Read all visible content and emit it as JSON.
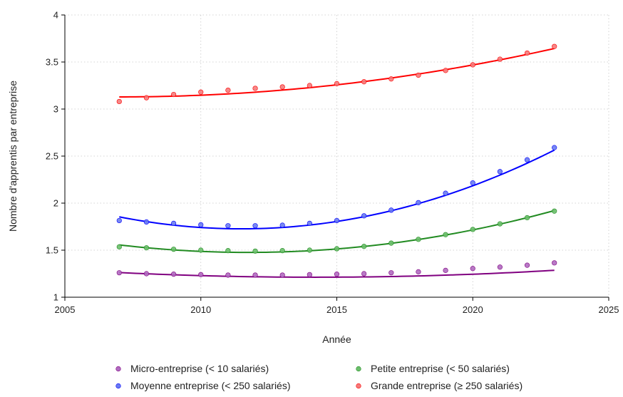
{
  "chart_data": {
    "type": "scatter",
    "xlabel": "Année",
    "ylabel": "Nombre d'apprentis par entreprise",
    "xlim": [
      2005,
      2025
    ],
    "ylim": [
      1,
      4
    ],
    "xticks": [
      2005,
      2010,
      2015,
      2020,
      2025
    ],
    "yticks": [
      1,
      1.5,
      2,
      2.5,
      3,
      3.5,
      4
    ],
    "ytick_labels": [
      "1",
      "1.5",
      "2",
      "2.5",
      "3",
      "3.5",
      "4"
    ],
    "grid": true,
    "legend_position": "bottom",
    "x": [
      2007,
      2008,
      2009,
      2010,
      2011,
      2012,
      2013,
      2014,
      2015,
      2016,
      2017,
      2018,
      2019,
      2020,
      2021,
      2022,
      2023
    ],
    "series": [
      {
        "name": "Micro-entreprise (< 10 salariés)",
        "color": "#800080",
        "marker_color": "#b06cc0",
        "values": [
          1.26,
          1.25,
          1.245,
          1.24,
          1.235,
          1.235,
          1.235,
          1.24,
          1.245,
          1.25,
          1.26,
          1.27,
          1.285,
          1.305,
          1.32,
          1.34,
          1.365
        ],
        "fit": [
          1.262,
          -0.0137,
          0.00095
        ]
      },
      {
        "name": "Petite entreprise (< 50 salariés)",
        "color": "#228b22",
        "marker_color": "#6cbf6c",
        "values": [
          1.535,
          1.525,
          1.51,
          1.5,
          1.495,
          1.49,
          1.495,
          1.5,
          1.515,
          1.54,
          1.575,
          1.615,
          1.665,
          1.72,
          1.78,
          1.845,
          1.915
        ],
        "fit": [
          1.556,
          -0.0335,
          0.00352
        ]
      },
      {
        "name": "Moyenne entreprise (< 250 salariés)",
        "color": "#0000ff",
        "marker_color": "#6a7cf0",
        "values": [
          1.815,
          1.8,
          1.785,
          1.77,
          1.76,
          1.76,
          1.765,
          1.785,
          1.815,
          1.865,
          1.925,
          2.005,
          2.105,
          2.215,
          2.335,
          2.46,
          2.59
        ],
        "fit": [
          1.854,
          -0.0566,
          0.00631
        ]
      },
      {
        "name": "Grande entreprise (≥ 250 salariés)",
        "color": "#ff0000",
        "marker_color": "#f47b7b",
        "values": [
          3.08,
          3.12,
          3.155,
          3.18,
          3.2,
          3.22,
          3.235,
          3.25,
          3.27,
          3.29,
          3.32,
          3.36,
          3.41,
          3.47,
          3.53,
          3.595,
          3.665
        ],
        "fit": [
          3.129,
          0.0,
          0.00201
        ]
      }
    ]
  }
}
